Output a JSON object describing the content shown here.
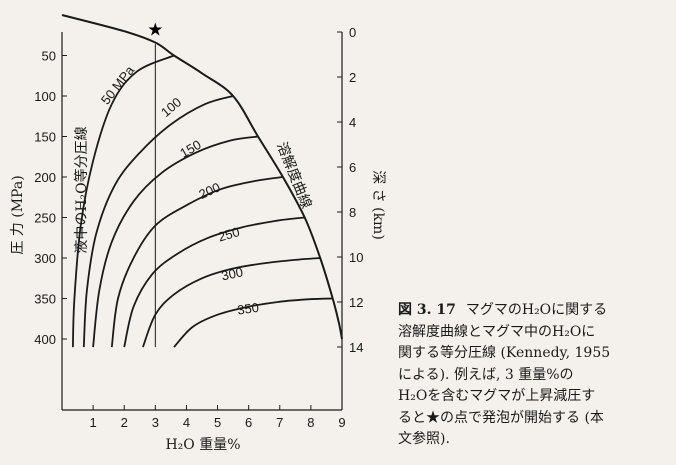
{
  "chart_data": {
    "type": "line",
    "xlabel": "H₂O 重量%",
    "ylabel": "圧 力 (MPa)",
    "y2label": "深 さ (km)",
    "xlim": [
      0,
      9
    ],
    "ylim": [
      0,
      400
    ],
    "y2lim": [
      0,
      14
    ],
    "x_ticks": [
      1,
      2,
      3,
      4,
      5,
      6,
      7,
      8,
      9
    ],
    "y_ticks": [
      50,
      100,
      150,
      200,
      250,
      300,
      350,
      400
    ],
    "y2_ticks": [
      0,
      2,
      4,
      6,
      8,
      10,
      12,
      14
    ],
    "solubility_curve": {
      "label": "溶解度曲線",
      "x": [
        0.0,
        2.0,
        3.0,
        3.6,
        4.5,
        5.5,
        6.3,
        7.1,
        7.8,
        8.3,
        8.7,
        8.9,
        9.0
      ],
      "y": [
        0,
        20,
        34,
        50,
        72,
        100,
        150,
        200,
        250,
        300,
        350,
        380,
        400
      ]
    },
    "isobar_label_title": "液中のH₂O等分圧線",
    "isobars": [
      {
        "label": "50 MPa",
        "x": [
          0.35,
          0.4,
          0.6,
          1.0,
          1.6,
          2.4,
          3.6
        ],
        "y": [
          410,
          350,
          260,
          180,
          110,
          70,
          50
        ]
      },
      {
        "label": "100",
        "x": [
          0.7,
          0.8,
          1.1,
          1.7,
          2.5,
          3.5,
          4.6,
          5.5
        ],
        "y": [
          410,
          340,
          270,
          210,
          170,
          135,
          110,
          100
        ]
      },
      {
        "label": "150",
        "x": [
          1.0,
          1.2,
          1.6,
          2.3,
          3.2,
          4.3,
          5.4,
          6.3
        ],
        "y": [
          410,
          340,
          280,
          230,
          195,
          170,
          155,
          150
        ]
      },
      {
        "label": "200",
        "x": [
          1.6,
          1.8,
          2.3,
          3.0,
          4.0,
          5.1,
          6.2,
          7.1
        ],
        "y": [
          410,
          350,
          300,
          260,
          235,
          215,
          205,
          200
        ]
      },
      {
        "label": "250",
        "x": [
          2.0,
          2.3,
          2.9,
          3.7,
          4.7,
          5.8,
          6.9,
          7.8
        ],
        "y": [
          410,
          360,
          320,
          295,
          275,
          262,
          254,
          250
        ]
      },
      {
        "label": "300",
        "x": [
          2.6,
          3.0,
          3.6,
          4.5,
          5.5,
          6.6,
          7.6,
          8.3
        ],
        "y": [
          410,
          370,
          345,
          325,
          313,
          306,
          302,
          300
        ]
      },
      {
        "label": "350",
        "x": [
          3.6,
          4.2,
          5.0,
          6.0,
          7.0,
          7.9,
          8.7
        ],
        "y": [
          410,
          385,
          370,
          360,
          354,
          351,
          350
        ]
      }
    ],
    "decompression_path": {
      "x": [
        3.0,
        3.0
      ],
      "y": [
        410,
        36
      ]
    },
    "star_point": {
      "x": 3.0,
      "y": 18,
      "symbol": "★"
    }
  },
  "caption": {
    "figure_number": "図 3. 17",
    "lines": [
      "マグマのH₂Oに関する",
      "溶解度曲線とマグマ中のH₂Oに",
      "関する等分圧線 (Kennedy, 1955",
      "による). 例えば, 3 重量%の",
      "H₂Oを含むマグマが上昇減圧す",
      "ると★の点で発泡が開始する (本",
      "文参照)."
    ]
  }
}
